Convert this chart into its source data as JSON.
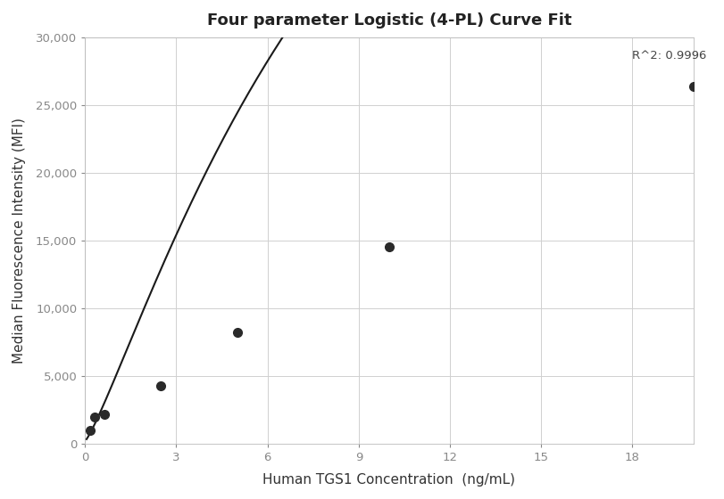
{
  "title": "Four parameter Logistic (4-PL) Curve Fit",
  "xlabel": "Human TGS1 Concentration  (ng/mL)",
  "ylabel": "Median Fluorescence Intensity (MFI)",
  "data_x": [
    0.156,
    0.312,
    0.625,
    2.5,
    5.0,
    10.0,
    20.0
  ],
  "data_y": [
    1000,
    1950,
    2200,
    4300,
    8200,
    14500,
    26400
  ],
  "r_squared": "R^2: 0.9996",
  "xlim": [
    0,
    20
  ],
  "ylim": [
    0,
    30000
  ],
  "xticks": [
    0,
    3,
    6,
    9,
    12,
    15,
    18
  ],
  "yticks": [
    0,
    5000,
    10000,
    15000,
    20000,
    25000,
    30000
  ],
  "background_color": "#ffffff",
  "grid_color": "#d0d0d0",
  "line_color": "#1a1a1a",
  "marker_color": "#2a2a2a",
  "title_fontsize": 13,
  "label_fontsize": 11,
  "tick_fontsize": 9.5,
  "annotation_fontsize": 9.5,
  "marker_size": 7,
  "line_width": 1.5,
  "tick_color": "#888888",
  "label_color": "#333333"
}
